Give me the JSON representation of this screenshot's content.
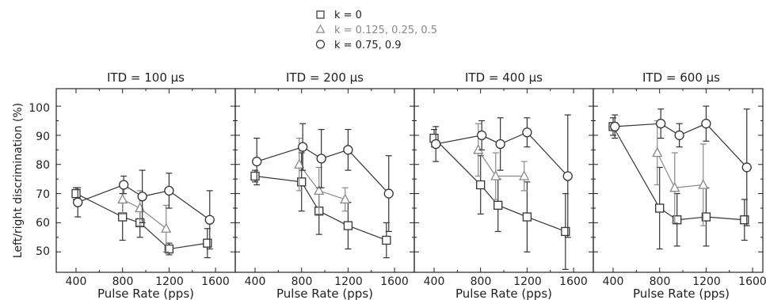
{
  "chart_data": [
    {
      "type": "line",
      "title": "ITD = 100 µs",
      "xlabel": "Pulse Rate (pps)",
      "ylabel": "Left/right discrimination (%)",
      "xlim": [
        250,
        1700
      ],
      "ylim": [
        43,
        106
      ],
      "xticks": [
        400,
        800,
        1200,
        1600
      ],
      "yticks": [
        50,
        60,
        70,
        80,
        90,
        100
      ],
      "series": [
        {
          "name": "k = 0",
          "x": [
            400,
            800,
            950,
            1200,
            1530
          ],
          "y": [
            70,
            62,
            60,
            51,
            53
          ],
          "err": [
            2,
            8,
            5,
            2,
            5
          ]
        },
        {
          "name": "k = 0.125, 0.25, 0.5",
          "x": [
            800,
            950,
            1175
          ],
          "y": [
            68,
            65,
            58
          ],
          "err": [
            5,
            6,
            8
          ]
        },
        {
          "name": "k = 0.75, 0.9",
          "x": [
            415,
            810,
            970,
            1200,
            1550
          ],
          "y": [
            67,
            73,
            69,
            71,
            61
          ],
          "err": [
            5,
            3,
            9,
            6,
            10
          ]
        }
      ]
    },
    {
      "type": "line",
      "title": "ITD = 200 µs",
      "xlabel": "Pulse Rate (pps)",
      "ylabel": "",
      "xlim": [
        250,
        1700
      ],
      "ylim": [
        43,
        106
      ],
      "xticks": [
        400,
        800,
        1200,
        1600
      ],
      "yticks": [
        50,
        60,
        70,
        80,
        90,
        100
      ],
      "series": [
        {
          "name": "k = 0",
          "x": [
            400,
            800,
            950,
            1200,
            1530
          ],
          "y": [
            76,
            74,
            64,
            59,
            54
          ],
          "err": [
            2,
            10,
            8,
            8,
            6
          ]
        },
        {
          "name": "k = 0.125, 0.25, 0.5",
          "x": [
            780,
            950,
            1175
          ],
          "y": [
            80,
            71,
            68
          ],
          "err": [
            9,
            8,
            4
          ]
        },
        {
          "name": "k = 0.75, 0.9",
          "x": [
            415,
            810,
            970,
            1200,
            1550
          ],
          "y": [
            81,
            86,
            82,
            85,
            70
          ],
          "err": [
            8,
            8,
            10,
            7,
            13
          ]
        }
      ]
    },
    {
      "type": "line",
      "title": "ITD = 400 µs",
      "xlabel": "Pulse Rate (pps)",
      "ylabel": "",
      "xlim": [
        250,
        1700
      ],
      "ylim": [
        43,
        106
      ],
      "xticks": [
        400,
        800,
        1200,
        1600
      ],
      "yticks": [
        50,
        60,
        70,
        80,
        90,
        100
      ],
      "series": [
        {
          "name": "k = 0",
          "x": [
            400,
            800,
            950,
            1200,
            1530
          ],
          "y": [
            89,
            73,
            66,
            62,
            57
          ],
          "err": [
            3,
            10,
            9,
            12,
            13
          ]
        },
        {
          "name": "k = 0.125, 0.25, 0.5",
          "x": [
            780,
            930,
            1175
          ],
          "y": [
            85,
            76,
            76
          ],
          "err": [
            9,
            8,
            5
          ]
        },
        {
          "name": "k = 0.75, 0.9",
          "x": [
            415,
            810,
            970,
            1200,
            1550
          ],
          "y": [
            87,
            90,
            87,
            91,
            76
          ],
          "err": [
            6,
            5,
            9,
            5,
            21
          ]
        }
      ]
    },
    {
      "type": "line",
      "title": "ITD = 600 µs",
      "xlabel": "Pulse Rate (pps)",
      "ylabel": "",
      "xlim": [
        250,
        1700
      ],
      "ylim": [
        43,
        106
      ],
      "xticks": [
        400,
        800,
        1200,
        1600
      ],
      "yticks": [
        50,
        60,
        70,
        80,
        90,
        100
      ],
      "series": [
        {
          "name": "k = 0",
          "x": [
            400,
            800,
            950,
            1200,
            1530
          ],
          "y": [
            93,
            65,
            61,
            62,
            61
          ],
          "err": [
            3,
            14,
            9,
            10,
            7
          ]
        },
        {
          "name": "k = 0.125, 0.25, 0.5",
          "x": [
            780,
            930,
            1175
          ],
          "y": [
            84,
            72,
            73
          ],
          "err": [
            11,
            12,
            14
          ]
        },
        {
          "name": "k = 0.75, 0.9",
          "x": [
            415,
            810,
            970,
            1200,
            1550
          ],
          "y": [
            93,
            94,
            90,
            94,
            79
          ],
          "err": [
            4,
            5,
            4,
            6,
            20
          ]
        }
      ]
    }
  ],
  "legend": [
    {
      "marker": "square",
      "label": "k = 0"
    },
    {
      "marker": "triangle",
      "label": "k = 0.125, 0.25, 0.5"
    },
    {
      "marker": "circle",
      "label": "k = 0.75, 0.9"
    }
  ],
  "colors": {
    "k0": "#333333",
    "kmid": "#888888",
    "khigh": "#333333"
  }
}
